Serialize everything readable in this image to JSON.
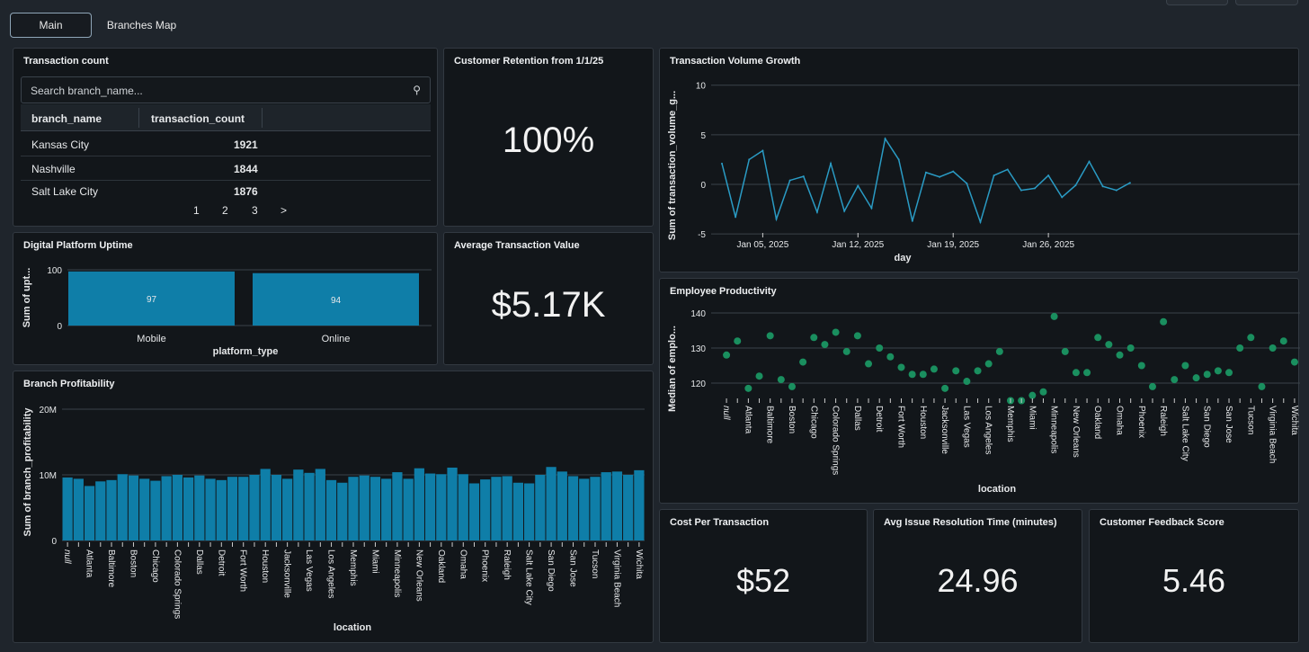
{
  "tabs": [
    {
      "label": "Main"
    },
    {
      "label": "Branches Map"
    }
  ],
  "transaction_count": {
    "title": "Transaction count",
    "search_placeholder": "Search branch_name...",
    "columns": [
      "branch_name",
      "transaction_count"
    ],
    "rows": [
      [
        "Kansas City",
        "1921"
      ],
      [
        "Nashville",
        "1844"
      ],
      [
        "Salt Lake City",
        "1876"
      ]
    ],
    "pages": [
      "1",
      "2",
      "3",
      ">"
    ]
  },
  "retention": {
    "title": "Customer Retention from 1/1/25",
    "value": "100%"
  },
  "avg_txn": {
    "title": "Average Transaction Value",
    "value": "$5.17K"
  },
  "cost": {
    "title": "Cost Per Transaction",
    "value": "$52"
  },
  "issue": {
    "title": "Avg Issue Resolution Time (minutes)",
    "value": "24.96"
  },
  "feedback": {
    "title": "Customer Feedback Score",
    "value": "5.46"
  },
  "titles": {
    "uptime": "Digital Platform Uptime",
    "profit": "Branch Profitability",
    "growth": "Transaction Volume Growth",
    "productivity": "Employee Productivity"
  },
  "colors": {
    "bar": "#0f7ea8",
    "line": "#2a9bc4",
    "dot": "#1a8f5f"
  },
  "chart_data": [
    {
      "id": "uptime",
      "type": "bar",
      "title": "Digital Platform Uptime",
      "categories": [
        "Mobile",
        "Online"
      ],
      "values": [
        97,
        94
      ],
      "data_labels": [
        "97",
        "94"
      ],
      "xlabel": "platform_type",
      "ylabel": "Sum of upt...",
      "ylim": [
        0,
        100
      ],
      "yticks": [
        "0",
        "100"
      ]
    },
    {
      "id": "profit",
      "type": "bar",
      "title": "Branch Profitability",
      "xlabel": "location",
      "ylabel": "Sum of branch_profitability",
      "ylim": [
        0,
        20000000
      ],
      "yticks": [
        "0",
        "10M",
        "20M"
      ],
      "categories": [
        "null",
        "",
        "Atlanta",
        "",
        "Baltimore",
        "",
        "Boston",
        "",
        "Chicago",
        "",
        "Colorado Springs",
        "",
        "Dallas",
        "",
        "Detroit",
        "",
        "Fort Worth",
        "",
        "Houston",
        "",
        "Jacksonville",
        "",
        "Las Vegas",
        "",
        "Los Angeles",
        "",
        "Memphis",
        "",
        "Miami",
        "",
        "Minneapolis",
        "",
        "New Orleans",
        "",
        "Oakland",
        "",
        "Omaha",
        "",
        "Phoenix",
        "",
        "Raleigh",
        "",
        "Salt Lake City",
        "",
        "San Diego",
        "",
        "San Jose",
        "",
        "Tucson",
        "",
        "Virginia Beach",
        "",
        "Wichita"
      ],
      "values": [
        9.6,
        9.4,
        8.3,
        9.0,
        9.2,
        10.1,
        9.9,
        9.4,
        9.1,
        9.8,
        10.0,
        9.6,
        9.9,
        9.4,
        9.2,
        9.7,
        9.7,
        10.0,
        10.9,
        10.0,
        9.4,
        10.8,
        10.3,
        10.9,
        9.2,
        8.8,
        9.7,
        9.9,
        9.7,
        9.4,
        10.4,
        9.4,
        11.0,
        10.2,
        10.1,
        11.1,
        10.1,
        8.7,
        9.3,
        9.7,
        9.8,
        8.8,
        8.7,
        10.0,
        11.2,
        10.5,
        9.8,
        9.4,
        9.7,
        10.4,
        10.5,
        10.0,
        10.7
      ],
      "value_unit": "millions"
    },
    {
      "id": "growth",
      "type": "line",
      "title": "Transaction Volume Growth",
      "xlabel": "day",
      "ylabel": "Sum of transaction_volume_g...",
      "ylim": [
        -5,
        10
      ],
      "yticks": [
        "-5",
        "0",
        "5",
        "10"
      ],
      "xticks": [
        "Jan 05, 2025",
        "Jan 12, 2025",
        "Jan 19, 2025",
        "Jan 26, 2025"
      ],
      "x_start": "2025-01-02",
      "x_end": "2025-02-01",
      "values": [
        2.1,
        -3.3,
        2.5,
        3.4,
        -3.5,
        0.4,
        0.8,
        -2.8,
        2.1,
        -2.7,
        -0.15,
        -2.4,
        4.6,
        2.5,
        -3.7,
        1.2,
        0.75,
        1.3,
        0.1,
        -3.8,
        0.9,
        1.5,
        -0.6,
        -0.4,
        0.9,
        -1.3,
        -0.1,
        2.3,
        -0.2,
        -0.6,
        0.15
      ]
    },
    {
      "id": "productivity",
      "type": "scatter",
      "title": "Employee Productivity",
      "xlabel": "location",
      "ylabel": "Median of emplo...",
      "ylim": [
        114,
        142
      ],
      "yticks": [
        "120",
        "130",
        "140"
      ],
      "categories": [
        "null",
        "",
        "Atlanta",
        "",
        "Baltimore",
        "",
        "Boston",
        "",
        "Chicago",
        "",
        "Colorado Springs",
        "",
        "Dallas",
        "",
        "Detroit",
        "",
        "Fort Worth",
        "",
        "Houston",
        "",
        "Jacksonville",
        "",
        "Las Vegas",
        "",
        "Los Angeles",
        "",
        "Memphis",
        "",
        "Miami",
        "",
        "Minneapolis",
        "",
        "New Orleans",
        "",
        "Oakland",
        "",
        "Omaha",
        "",
        "Phoenix",
        "",
        "Raleigh",
        "",
        "Salt Lake City",
        "",
        "San Diego",
        "",
        "San Jose",
        "",
        "Tucson",
        "",
        "Virginia Beach",
        "",
        "Wichita"
      ],
      "values": [
        128,
        132,
        118.5,
        122,
        133.5,
        121,
        119,
        126,
        133,
        131,
        134.5,
        129,
        133.5,
        125.5,
        130,
        127.5,
        124.5,
        122.5,
        122.5,
        124,
        118.5,
        123.5,
        120.5,
        123.5,
        125.5,
        129,
        115,
        115,
        116.5,
        117.5,
        139,
        129,
        123,
        123,
        133,
        131,
        128,
        130,
        125,
        119,
        137.5,
        121,
        125,
        121.5,
        122.5,
        123.5,
        123,
        130,
        133,
        119,
        130,
        132,
        126
      ]
    }
  ]
}
